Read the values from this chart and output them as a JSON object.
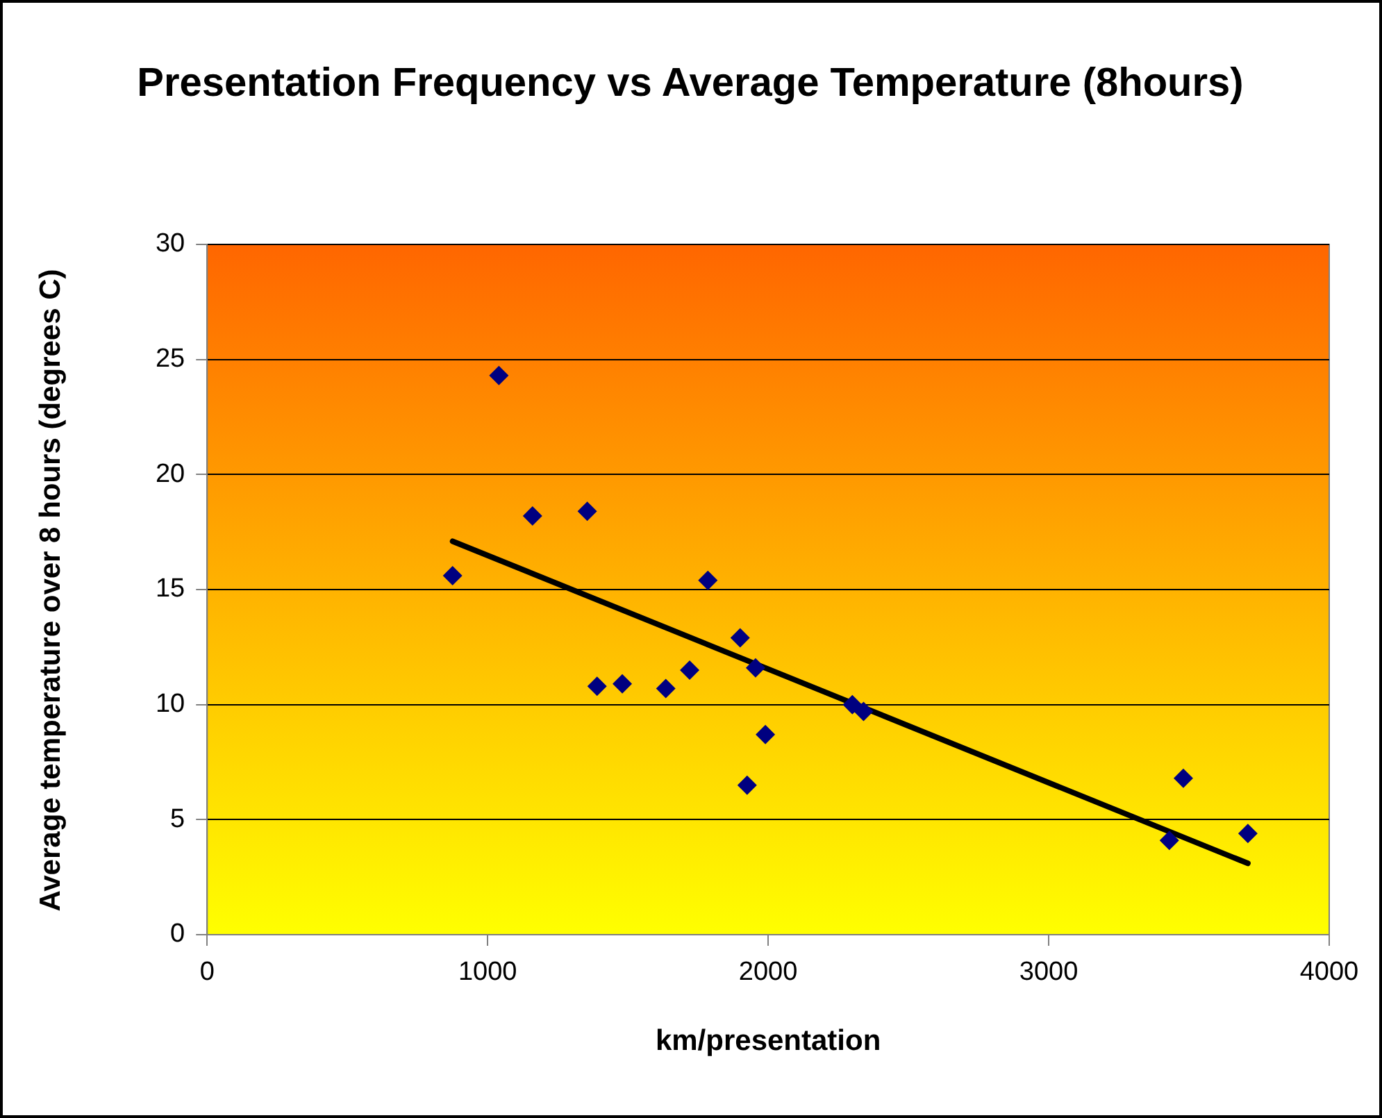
{
  "chart_data": {
    "type": "scatter",
    "title": "Presentation Frequency vs Average Temperature (8hours)",
    "xlabel": "km/presentation",
    "ylabel": "Average temperature over 8 hours (degrees C)",
    "xlim": [
      0,
      4000
    ],
    "xticks": [
      0,
      1000,
      2000,
      3000,
      4000
    ],
    "ylim": [
      0,
      30
    ],
    "yticks": [
      0,
      5,
      10,
      15,
      20,
      25,
      30
    ],
    "grid": "y",
    "legend": false,
    "series": [
      {
        "color": "#000080",
        "marker": "diamond",
        "x": [
          875,
          1040,
          1160,
          1355,
          1390,
          1480,
          1635,
          1720,
          1785,
          1900,
          1925,
          1955,
          1990,
          2300,
          2340,
          3430,
          3480,
          3710
        ],
        "values": [
          15.6,
          24.3,
          18.2,
          18.4,
          10.8,
          10.9,
          10.7,
          11.5,
          15.4,
          12.9,
          6.5,
          11.6,
          8.7,
          10.0,
          9.7,
          4.1,
          6.8,
          4.4
        ]
      },
      {
        "type": "line",
        "color": "#000000",
        "marker": "none",
        "x": [
          875,
          3710
        ],
        "values": [
          17.1,
          3.1
        ]
      }
    ]
  }
}
